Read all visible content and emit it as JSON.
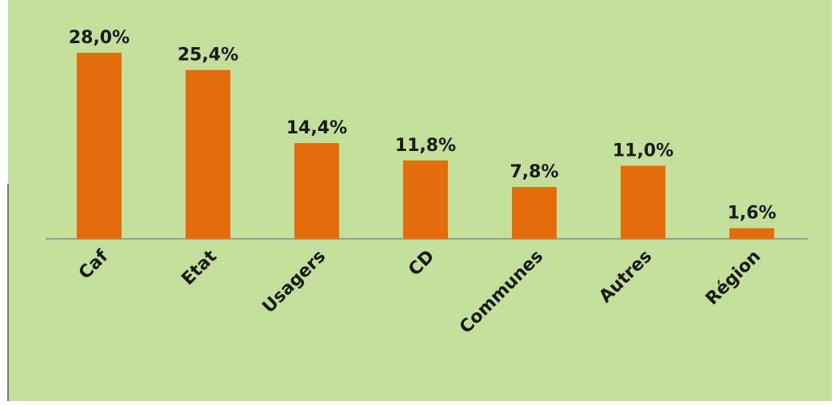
{
  "chart_data": {
    "type": "bar",
    "categories": [
      "Caf",
      "Etat",
      "Usagers",
      "CD",
      "Communes",
      "Autres",
      "Région"
    ],
    "values": [
      28.0,
      25.4,
      14.4,
      11.8,
      7.8,
      11.0,
      1.6
    ],
    "value_labels": [
      "28,0%",
      "25,4%",
      "14,4%",
      "11,8%",
      "7,8%",
      "11,0%",
      "1,6%"
    ],
    "color": "#e46c0a"
  }
}
